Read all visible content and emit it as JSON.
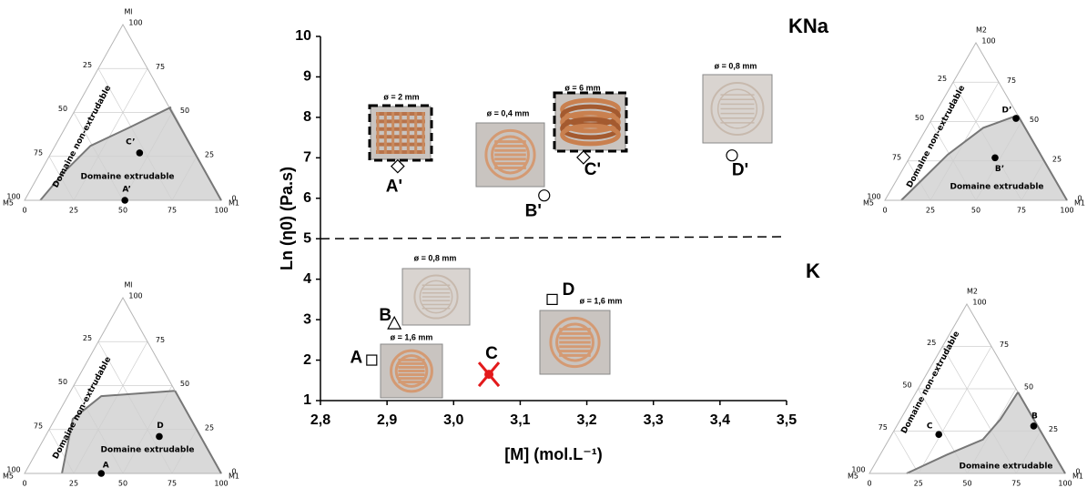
{
  "chart_data": [
    {
      "type": "scatter",
      "xlabel": "[M] (mol.L⁻¹)",
      "ylabel": "Ln (η0) (Pa.s)",
      "xlim": [
        2.8,
        3.5
      ],
      "xticks": [
        {
          "value": 2.8,
          "label": "2,8"
        },
        {
          "value": 2.9,
          "label": "2,9"
        },
        {
          "value": 3.0,
          "label": "3,0"
        },
        {
          "value": 3.1,
          "label": "3,1"
        },
        {
          "value": 3.2,
          "label": "3,2"
        },
        {
          "value": 3.3,
          "label": "3,3"
        },
        {
          "value": 3.4,
          "label": "3,4"
        },
        {
          "value": 3.5,
          "label": "3,5"
        }
      ],
      "ylim": [
        1,
        10
      ],
      "yticks": [
        1,
        2,
        3,
        4,
        5,
        6,
        7,
        8,
        9,
        10
      ],
      "points": [
        {
          "label": "A",
          "x": 2.877,
          "y": 2.0,
          "marker": "square",
          "color": "#000000"
        },
        {
          "label": "B",
          "x": 2.911,
          "y": 2.91,
          "marker": "triangle",
          "color": "#000000"
        },
        {
          "label": "C",
          "x": 3.053,
          "y": 1.65,
          "marker": "cross",
          "color": "#e31a1c"
        },
        {
          "label": "D",
          "x": 3.148,
          "y": 3.5,
          "marker": "square",
          "color": "#000000"
        },
        {
          "label": "A'",
          "x": 2.916,
          "y": 6.79,
          "marker": "diamond",
          "color": "#000000"
        },
        {
          "label": "B'",
          "x": 3.136,
          "y": 6.07,
          "marker": "circle",
          "color": "#000000"
        },
        {
          "label": "C'",
          "x": 3.195,
          "y": 7.01,
          "marker": "diamond",
          "color": "#000000"
        },
        {
          "label": "D'",
          "x": 3.418,
          "y": 7.06,
          "marker": "circle",
          "color": "#000000"
        }
      ],
      "dashed_line": {
        "x": [
          2.8,
          3.5
        ],
        "y": [
          5.0,
          5.05
        ]
      },
      "annotations": [
        "KNa",
        "K"
      ],
      "photo_captions": [
        "ø = 2 mm",
        "ø = 0,4 mm",
        "ø = 6 mm",
        "ø = 0,8 mm",
        "ø = 0,8 mm",
        "ø = 1,6 mm",
        "ø = 1,6 mm"
      ]
    },
    {
      "type": "ternary",
      "apex_top": "Ml",
      "apex_left": "M5",
      "apex_right": "M1",
      "ticks": [
        0,
        25,
        50,
        75,
        100
      ],
      "region_labels": [
        "Domaine non-extrudable",
        "Domaine extrudable"
      ],
      "points": [
        {
          "label": "C’",
          "m1": 45,
          "top": 27
        },
        {
          "label": "A’",
          "m1": 51,
          "top": 0
        }
      ],
      "boundary_m1": [
        8,
        12,
        18,
        32,
        48
      ],
      "boundary_top": [
        0,
        16,
        31,
        41,
        53
      ]
    },
    {
      "type": "ternary",
      "apex_top": "M2",
      "apex_left": "M5",
      "apex_right": "M1",
      "ticks": [
        0,
        25,
        50,
        75,
        100
      ],
      "region_labels": [
        "Domaine non-extrudable",
        "Domaine extrudable"
      ],
      "points": [
        {
          "label": "D’",
          "m1": 46,
          "top": 52
        },
        {
          "label": "B’",
          "m1": 47,
          "top": 27
        }
      ],
      "boundary_m1": [
        9,
        20,
        31,
        46
      ],
      "boundary_top": [
        0,
        29,
        46,
        54
      ]
    },
    {
      "type": "ternary",
      "apex_top": "Ml",
      "apex_left": "M5",
      "apex_right": "M1",
      "ticks": [
        0,
        25,
        50,
        75,
        100
      ],
      "region_labels": [
        "Domaine non-extrudable",
        "Domaine extrudable"
      ],
      "points": [
        {
          "label": "A",
          "m1": 39,
          "top": 0
        },
        {
          "label": "D",
          "m1": 58,
          "top": 21
        }
      ],
      "boundary_m1": [
        19,
        9,
        17,
        53
      ],
      "boundary_top": [
        0,
        31,
        44,
        47
      ]
    },
    {
      "type": "ternary",
      "apex_top": "M2",
      "apex_left": "M5",
      "apex_right": "M1",
      "ticks": [
        0,
        25,
        50,
        75,
        100
      ],
      "region_labels": [
        "Domaine non-extrudable",
        "Domaine extrudable"
      ],
      "points": [
        {
          "label": "C",
          "m1": 24,
          "top": 23
        },
        {
          "label": "B",
          "m1": 70,
          "top": 28
        }
      ],
      "boundary_m1": [
        19,
        34,
        48,
        51,
        52
      ],
      "boundary_top": [
        0,
        11,
        20,
        32,
        48
      ]
    }
  ]
}
